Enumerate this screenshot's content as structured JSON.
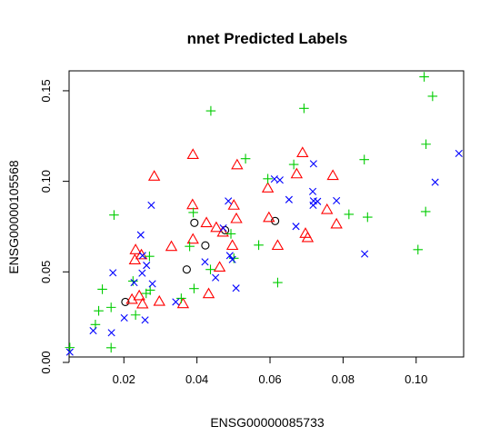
{
  "chart_data": {
    "type": "scatter",
    "title": "nnet Predicted Labels",
    "xlabel": "ENSG00000085733",
    "ylabel": "ENSG00000105568",
    "xlim": [
      0.005,
      0.113
    ],
    "ylim": [
      0.003,
      0.161
    ],
    "x_ticks": [
      0.02,
      0.04,
      0.06,
      0.08,
      0.1
    ],
    "x_tick_labels": [
      "0.02",
      "0.04",
      "0.06",
      "0.08",
      "0.10"
    ],
    "y_ticks": [
      0.0,
      0.05,
      0.1,
      0.15
    ],
    "y_tick_labels": [
      "0.00",
      "0.05",
      "0.10",
      "0.15"
    ],
    "grid": false,
    "legend": "none",
    "series": [
      {
        "marker": "circle",
        "color": "#000000",
        "points": [
          [
            0.0204,
            0.0334
          ],
          [
            0.0393,
            0.0771
          ],
          [
            0.0423,
            0.0646
          ],
          [
            0.0372,
            0.0513
          ],
          [
            0.0614,
            0.0781
          ],
          [
            0.0477,
            0.073
          ]
        ]
      },
      {
        "marker": "triangle",
        "color": "#ff0000",
        "points": [
          [
            0.0283,
            0.1028
          ],
          [
            0.0389,
            0.1148
          ],
          [
            0.051,
            0.1091
          ],
          [
            0.0594,
            0.0963
          ],
          [
            0.0689,
            0.1158
          ],
          [
            0.0772,
            0.1032
          ],
          [
            0.0388,
            0.0871
          ],
          [
            0.0426,
            0.0771
          ],
          [
            0.0453,
            0.0745
          ],
          [
            0.0471,
            0.0719
          ],
          [
            0.0501,
            0.0868
          ],
          [
            0.0508,
            0.0794
          ],
          [
            0.0597,
            0.08
          ],
          [
            0.0673,
            0.1041
          ],
          [
            0.0697,
            0.0712
          ],
          [
            0.0703,
            0.0689
          ],
          [
            0.0756,
            0.0844
          ],
          [
            0.0782,
            0.0764
          ],
          [
            0.0232,
            0.0622
          ],
          [
            0.023,
            0.0566
          ],
          [
            0.0248,
            0.0594
          ],
          [
            0.033,
            0.064
          ],
          [
            0.0389,
            0.068
          ],
          [
            0.0497,
            0.0646
          ],
          [
            0.0621,
            0.0646
          ],
          [
            0.0222,
            0.0348
          ],
          [
            0.0242,
            0.0368
          ],
          [
            0.0251,
            0.0323
          ],
          [
            0.0297,
            0.0337
          ],
          [
            0.0362,
            0.0324
          ],
          [
            0.0432,
            0.0379
          ],
          [
            0.0462,
            0.0526
          ]
        ]
      },
      {
        "marker": "plus",
        "color": "#00cc00",
        "points": [
          [
            0.0438,
            0.1389
          ],
          [
            0.0693,
            0.1403
          ],
          [
            0.1022,
            0.1577
          ],
          [
            0.1045,
            0.147
          ],
          [
            0.1027,
            0.1205
          ],
          [
            0.0858,
            0.112
          ],
          [
            0.0533,
            0.1125
          ],
          [
            0.0594,
            0.1014
          ],
          [
            0.0665,
            0.1093
          ],
          [
            0.0867,
            0.0802
          ],
          [
            0.0816,
            0.0818
          ],
          [
            0.1026,
            0.0833
          ],
          [
            0.1005,
            0.0623
          ],
          [
            0.0569,
            0.0648
          ],
          [
            0.0621,
            0.0441
          ],
          [
            0.0493,
            0.071
          ],
          [
            0.039,
            0.0828
          ],
          [
            0.0173,
            0.0814
          ],
          [
            0.0141,
            0.0404
          ],
          [
            0.0131,
            0.0285
          ],
          [
            0.0165,
            0.0304
          ],
          [
            0.0122,
            0.0209
          ],
          [
            0.0052,
            0.0082
          ],
          [
            0.0165,
            0.0081
          ],
          [
            0.0232,
            0.0262
          ],
          [
            0.0225,
            0.0449
          ],
          [
            0.027,
            0.0586
          ],
          [
            0.0261,
            0.0381
          ],
          [
            0.0272,
            0.0399
          ],
          [
            0.0357,
            0.0354
          ],
          [
            0.038,
            0.0641
          ],
          [
            0.0392,
            0.0408
          ],
          [
            0.0501,
            0.0575
          ],
          [
            0.0437,
            0.0513
          ]
        ]
      },
      {
        "marker": "x",
        "color": "#0000ff",
        "points": [
          [
            0.1117,
            0.1154
          ],
          [
            0.1052,
            0.0995
          ],
          [
            0.0719,
            0.1097
          ],
          [
            0.0717,
            0.0944
          ],
          [
            0.0627,
            0.1007
          ],
          [
            0.0612,
            0.1013
          ],
          [
            0.0652,
            0.0899
          ],
          [
            0.0719,
            0.0892
          ],
          [
            0.073,
            0.0889
          ],
          [
            0.0782,
            0.0893
          ],
          [
            0.0718,
            0.0868
          ],
          [
            0.0486,
            0.0891
          ],
          [
            0.0275,
            0.0868
          ],
          [
            0.0671,
            0.0751
          ],
          [
            0.0472,
            0.0742
          ],
          [
            0.0859,
            0.0599
          ],
          [
            0.0246,
            0.0704
          ],
          [
            0.0251,
            0.059
          ],
          [
            0.0262,
            0.0536
          ],
          [
            0.0278,
            0.0434
          ],
          [
            0.025,
            0.0493
          ],
          [
            0.017,
            0.0495
          ],
          [
            0.0228,
            0.0441
          ],
          [
            0.0116,
            0.0175
          ],
          [
            0.0166,
            0.0164
          ],
          [
            0.0052,
            0.0057
          ],
          [
            0.0201,
            0.0246
          ],
          [
            0.0258,
            0.0234
          ],
          [
            0.0342,
            0.0334
          ],
          [
            0.0422,
            0.0555
          ],
          [
            0.0451,
            0.0468
          ],
          [
            0.0497,
            0.0568
          ],
          [
            0.0507,
            0.041
          ],
          [
            0.049,
            0.059
          ]
        ]
      }
    ]
  }
}
